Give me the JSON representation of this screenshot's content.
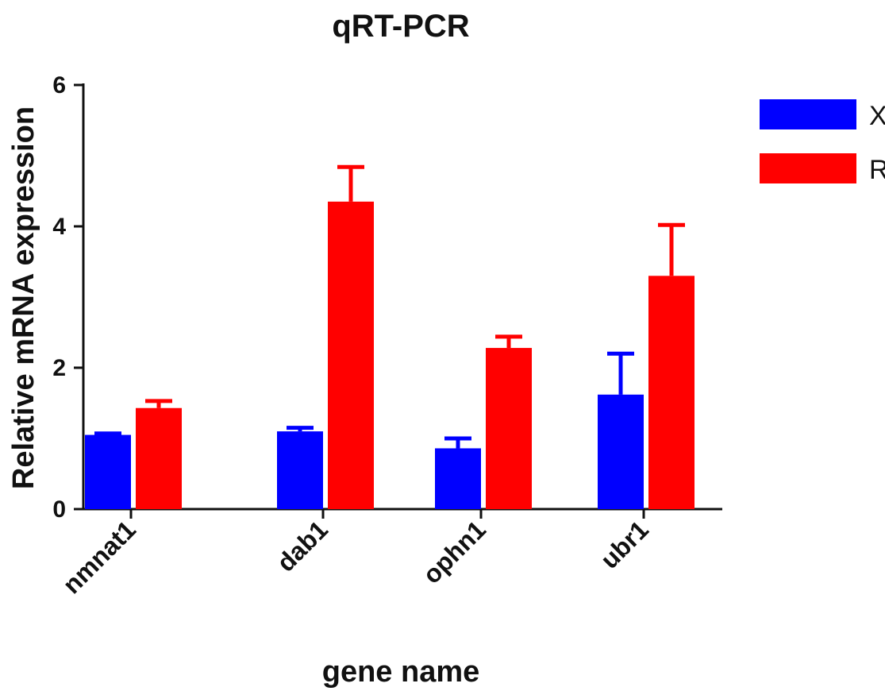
{
  "chart_data": {
    "type": "bar",
    "title": "qRT-PCR",
    "xlabel": "gene name",
    "ylabel": "Relative mRNA expression",
    "categories": [
      "nmnat1",
      "dab1",
      "ophn1",
      "ubr1"
    ],
    "series": [
      {
        "name": "XJ",
        "color": "#0000ff",
        "values": [
          1.05,
          1.1,
          0.86,
          1.62
        ],
        "errors": [
          0.02,
          0.05,
          0.14,
          0.58
        ]
      },
      {
        "name": "RQ",
        "color": "#ff0000",
        "values": [
          1.43,
          4.35,
          2.28,
          3.3
        ],
        "errors": [
          0.1,
          0.49,
          0.16,
          0.72
        ]
      }
    ],
    "ylim": [
      0,
      6
    ],
    "yticks": [
      "0",
      "2",
      "4",
      "6"
    ],
    "grid": false,
    "legend": "top-right"
  }
}
